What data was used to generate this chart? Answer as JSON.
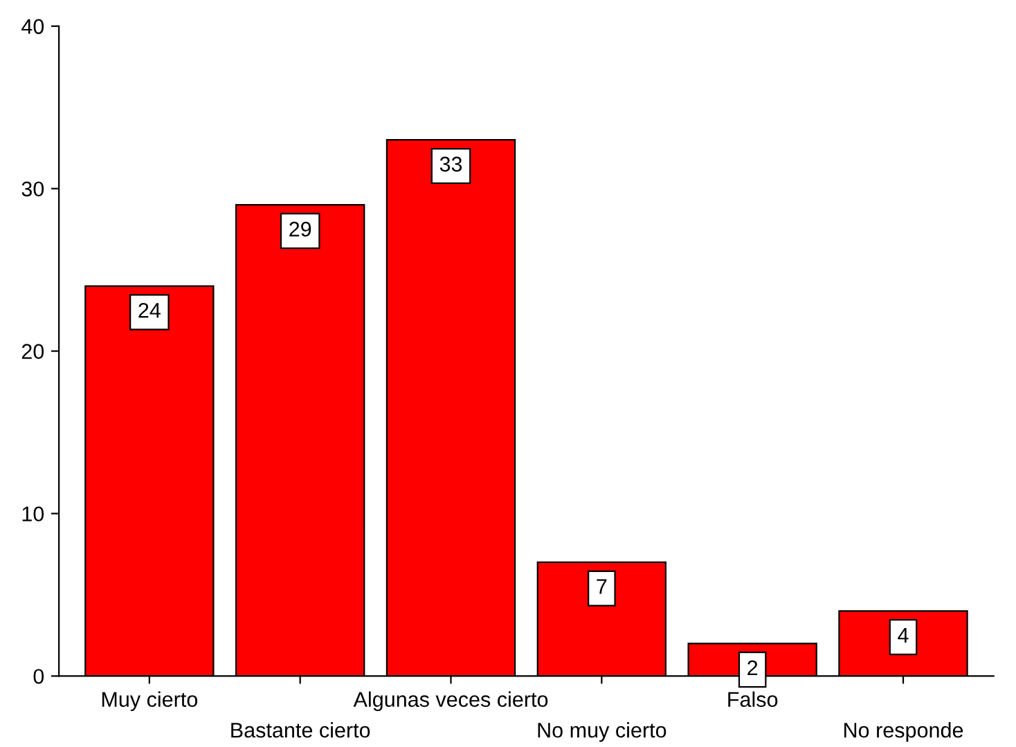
{
  "chart_data": {
    "type": "bar",
    "categories": [
      "Muy cierto",
      "Bastante cierto",
      "Algunas veces cierto",
      "No muy cierto",
      "Falso",
      "No responde"
    ],
    "values": [
      24,
      29,
      33,
      7,
      2,
      4
    ],
    "color": "#ff0000",
    "ylim": [
      0,
      40
    ],
    "yticks": [
      0,
      10,
      20,
      30,
      40
    ],
    "data_labels": true,
    "grid": false,
    "legend": false
  }
}
